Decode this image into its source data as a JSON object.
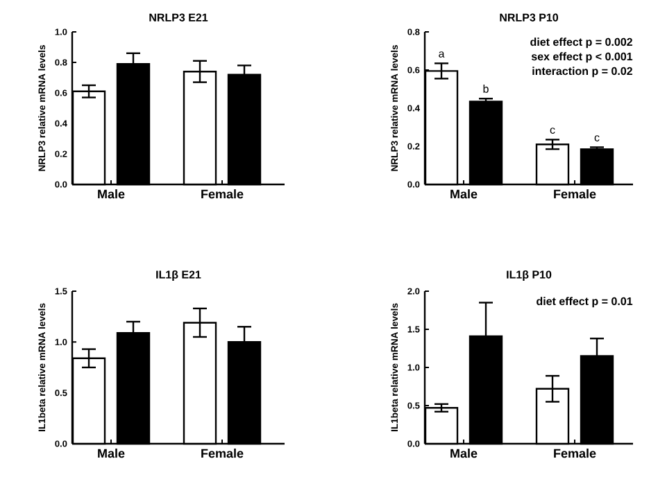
{
  "chart_data": [
    {
      "type": "bar",
      "title": "NRLP3 E21",
      "ylabel": "NRLP3 relative mRNA levels",
      "categories": [
        "Male",
        "Female"
      ],
      "series": [
        {
          "color": "#ffffff",
          "values": [
            0.61,
            0.74
          ],
          "errors": [
            0.04,
            0.07
          ]
        },
        {
          "color": "#000000",
          "values": [
            0.79,
            0.72
          ],
          "errors": [
            0.07,
            0.06
          ]
        }
      ],
      "ylim": [
        0,
        1.0
      ],
      "yticks": [
        {
          "value": 0,
          "label": "0.0"
        },
        {
          "value": 0.2,
          "label": "0.2"
        },
        {
          "value": 0.4,
          "label": "0.4"
        },
        {
          "value": 0.6,
          "label": "0.6"
        },
        {
          "value": 0.8,
          "label": "0.8"
        },
        {
          "value": 1.0,
          "label": "1.0"
        }
      ]
    },
    {
      "type": "bar",
      "title": "NRLP3 P10",
      "ylabel": "NRLP3 relative mRNA levels",
      "categories": [
        "Male",
        "Female"
      ],
      "series": [
        {
          "color": "#ffffff",
          "values": [
            0.595,
            0.21
          ],
          "errors": [
            0.04,
            0.025
          ]
        },
        {
          "color": "#000000",
          "values": [
            0.435,
            0.185
          ],
          "errors": [
            0.015,
            0.01
          ]
        }
      ],
      "ylim": [
        0,
        0.8
      ],
      "yticks": [
        {
          "value": 0,
          "label": "0.0"
        },
        {
          "value": 0.2,
          "label": "0.2"
        },
        {
          "value": 0.4,
          "label": "0.4"
        },
        {
          "value": 0.6,
          "label": "0.6"
        },
        {
          "value": 0.8,
          "label": "0.8"
        }
      ],
      "annotations": [
        "diet effect p = 0.002",
        "sex effect p < 0.001",
        "interaction p = 0.02",
        {
          "text": "a",
          "x": "Male",
          "y": 0.595
        },
        {
          "text": "b",
          "x": "Male",
          "y": 0.435
        },
        {
          "text": "c",
          "x": "Female",
          "y": 0.21
        },
        {
          "text": "c",
          "x": "Female",
          "y": 0.185
        }
      ]
    },
    {
      "type": "bar",
      "title": "IL1β E21",
      "ylabel": "IL1beta relative mRNA levels",
      "categories": [
        "Male",
        "Female"
      ],
      "series": [
        {
          "color": "#ffffff",
          "values": [
            0.84,
            1.19
          ],
          "errors": [
            0.09,
            0.14
          ]
        },
        {
          "color": "#000000",
          "values": [
            1.09,
            1.0
          ],
          "errors": [
            0.11,
            0.15
          ]
        }
      ],
      "ylim": [
        0,
        1.5
      ],
      "yticks": [
        {
          "value": 0,
          "label": "0.0"
        },
        {
          "value": 0.5,
          "label": "0.5"
        },
        {
          "value": 1.0,
          "label": "1.0"
        },
        {
          "value": 1.5,
          "label": "1.5"
        }
      ]
    },
    {
      "type": "bar",
      "title": "IL1β P10",
      "ylabel": "IL1beta relative mRNA levels",
      "categories": [
        "Male",
        "Female"
      ],
      "series": [
        {
          "color": "#ffffff",
          "values": [
            0.47,
            0.72
          ],
          "errors": [
            0.05,
            0.17
          ]
        },
        {
          "color": "#000000",
          "values": [
            1.41,
            1.15
          ],
          "errors": [
            0.44,
            0.23
          ]
        }
      ],
      "ylim": [
        0,
        2.0
      ],
      "yticks": [
        {
          "value": 0,
          "label": "0.0"
        },
        {
          "value": 0.5,
          "label": "0.5"
        },
        {
          "value": 1.0,
          "label": "1.0"
        },
        {
          "value": 1.5,
          "label": "1.5"
        },
        {
          "value": 2.0,
          "label": "2.0"
        }
      ],
      "annotations": [
        "diet effect p = 0.01"
      ]
    }
  ]
}
